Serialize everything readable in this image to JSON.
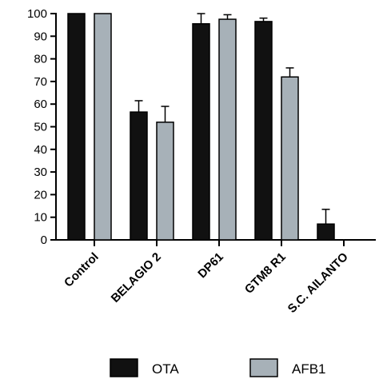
{
  "chart_data": {
    "type": "bar",
    "categories": [
      "Control",
      "BELAGIO 2",
      "DP61",
      "GTM8 R1",
      "S.C. AILANTO"
    ],
    "series": [
      {
        "name": "OTA",
        "values": [
          100,
          56.5,
          95.5,
          96.5,
          7
        ],
        "errors": [
          0,
          5,
          4.5,
          1.5,
          6.5
        ],
        "color": "#111111"
      },
      {
        "name": "AFB1",
        "values": [
          100,
          52,
          97.5,
          72,
          0
        ],
        "errors": [
          0,
          7,
          2,
          4,
          0
        ],
        "color": "#a7b1b8"
      }
    ],
    "yticks": [
      0,
      10,
      20,
      30,
      40,
      50,
      60,
      70,
      80,
      90,
      100
    ],
    "ylim": [
      0,
      100
    ],
    "legend": "bottom",
    "grid": false
  }
}
